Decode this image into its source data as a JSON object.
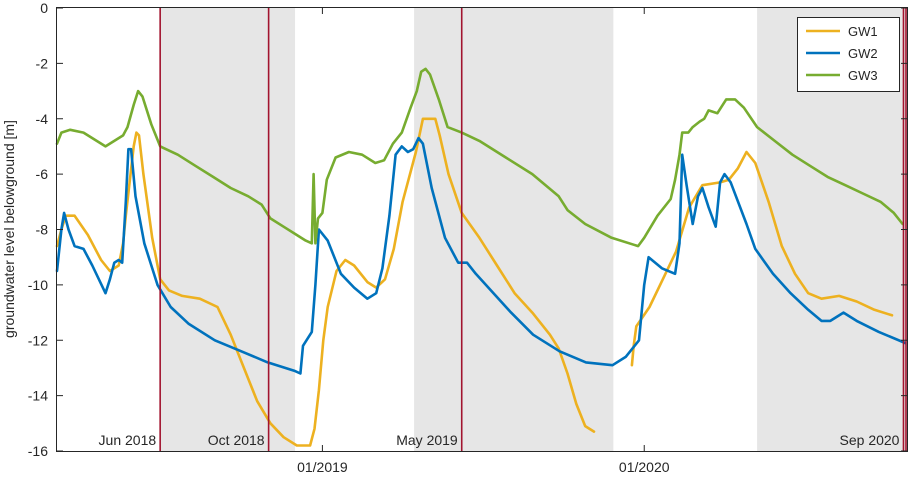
{
  "chart_data": {
    "type": "line",
    "ylabel": "groundwater level belowground [m]",
    "xlabel": "",
    "xlim": [
      "2018-03-06",
      "2020-10-25"
    ],
    "ylim": [
      -16,
      0
    ],
    "x_ticks": [
      {
        "date": "2019-01-01",
        "label": "01/2019"
      },
      {
        "date": "2020-01-01",
        "label": "01/2020"
      }
    ],
    "y_ticks": [
      0,
      -2,
      -4,
      -6,
      -8,
      -10,
      -12,
      -14,
      -16
    ],
    "grid": false,
    "legend": {
      "placement": "top-right"
    },
    "shaded_periods": [
      {
        "start": "2018-07-01",
        "end": "2018-12-01"
      },
      {
        "start": "2019-04-15",
        "end": "2019-11-27"
      },
      {
        "start": "2020-05-08",
        "end": "2020-10-25"
      }
    ],
    "event_lines": [
      {
        "date": "2018-07-01",
        "label": "Jun 2018"
      },
      {
        "date": "2018-11-01",
        "label": "Oct 2018"
      },
      {
        "date": "2019-06-08",
        "label": "May 2019"
      },
      {
        "date": "2020-10-21",
        "label": "Sep 2020"
      },
      {
        "date": "2020-10-24",
        "label": ""
      }
    ],
    "event_color": "#a2142f",
    "series": [
      {
        "name": "GW1",
        "color": "#edb120",
        "segments": [
          [
            [
              "2018-03-06",
              -8.6
            ],
            [
              "2018-03-11",
              -8.0
            ],
            [
              "2018-03-16",
              -7.5
            ],
            [
              "2018-03-26",
              -7.5
            ],
            [
              "2018-04-10",
              -8.2
            ],
            [
              "2018-04-25",
              -9.1
            ],
            [
              "2018-05-05",
              -9.5
            ],
            [
              "2018-05-15",
              -9.3
            ],
            [
              "2018-05-20",
              -8.5
            ],
            [
              "2018-05-23",
              -7.5
            ],
            [
              "2018-06-01",
              -5.0
            ],
            [
              "2018-06-04",
              -4.5
            ],
            [
              "2018-06-07",
              -4.6
            ],
            [
              "2018-06-12",
              -6.0
            ],
            [
              "2018-06-22",
              -8.3
            ],
            [
              "2018-07-01",
              -9.8
            ],
            [
              "2018-07-11",
              -10.2
            ],
            [
              "2018-07-26",
              -10.4
            ],
            [
              "2018-08-15",
              -10.5
            ],
            [
              "2018-09-04",
              -10.8
            ],
            [
              "2018-09-19",
              -11.8
            ],
            [
              "2018-10-04",
              -13.0
            ],
            [
              "2018-10-19",
              -14.2
            ],
            [
              "2018-11-03",
              -15.0
            ],
            [
              "2018-11-18",
              -15.5
            ],
            [
              "2018-12-03",
              -15.8
            ],
            [
              "2018-12-18",
              -15.8
            ],
            [
              "2018-12-23",
              -15.2
            ],
            [
              "2018-12-28",
              -13.8
            ],
            [
              "2019-01-02",
              -12.0
            ],
            [
              "2019-01-07",
              -10.8
            ],
            [
              "2019-01-17",
              -9.5
            ],
            [
              "2019-01-27",
              -9.1
            ],
            [
              "2019-02-06",
              -9.3
            ],
            [
              "2019-02-21",
              -9.9
            ],
            [
              "2019-03-03",
              -10.1
            ],
            [
              "2019-03-13",
              -9.8
            ],
            [
              "2019-03-23",
              -8.7
            ],
            [
              "2019-04-02",
              -7.0
            ],
            [
              "2019-04-17",
              -5.2
            ],
            [
              "2019-04-25",
              -4.0
            ],
            [
              "2019-05-09",
              -4.0
            ],
            [
              "2019-05-14",
              -4.6
            ],
            [
              "2019-05-24",
              -6.0
            ],
            [
              "2019-06-08",
              -7.4
            ],
            [
              "2019-06-28",
              -8.3
            ],
            [
              "2019-07-18",
              -9.3
            ],
            [
              "2019-08-07",
              -10.3
            ],
            [
              "2019-08-27",
              -11.0
            ],
            [
              "2019-09-16",
              -11.8
            ],
            [
              "2019-09-26",
              -12.3
            ],
            [
              "2019-10-06",
              -13.2
            ],
            [
              "2019-10-16",
              -14.3
            ],
            [
              "2019-10-26",
              -15.1
            ],
            [
              "2019-11-05",
              -15.3
            ]
          ],
          [
            [
              "2019-12-18",
              -12.9
            ],
            [
              "2019-12-20",
              -12.2
            ],
            [
              "2019-12-23",
              -11.5
            ],
            [
              "2020-01-07",
              -10.8
            ],
            [
              "2020-01-22",
              -9.8
            ],
            [
              "2020-02-06",
              -8.8
            ],
            [
              "2020-02-21",
              -7.2
            ],
            [
              "2020-03-07",
              -6.4
            ],
            [
              "2020-03-27",
              -6.3
            ],
            [
              "2020-04-06",
              -6.2
            ],
            [
              "2020-04-16",
              -5.8
            ],
            [
              "2020-04-26",
              -5.2
            ],
            [
              "2020-05-06",
              -5.6
            ],
            [
              "2020-05-21",
              -7.0
            ],
            [
              "2020-06-05",
              -8.6
            ],
            [
              "2020-06-20",
              -9.6
            ],
            [
              "2020-07-05",
              -10.3
            ],
            [
              "2020-07-20",
              -10.5
            ],
            [
              "2020-08-09",
              -10.4
            ],
            [
              "2020-08-29",
              -10.6
            ],
            [
              "2020-09-18",
              -10.9
            ],
            [
              "2020-10-08",
              -11.1
            ]
          ]
        ]
      },
      {
        "name": "GW2",
        "color": "#0072bd",
        "segments": [
          [
            [
              "2018-03-06",
              -9.5
            ],
            [
              "2018-03-11",
              -8.0
            ],
            [
              "2018-03-14",
              -7.4
            ],
            [
              "2018-03-19",
              -8.0
            ],
            [
              "2018-03-26",
              -8.6
            ],
            [
              "2018-04-05",
              -8.7
            ],
            [
              "2018-04-15",
              -9.3
            ],
            [
              "2018-04-30",
              -10.3
            ],
            [
              "2018-05-05",
              -9.8
            ],
            [
              "2018-05-10",
              -9.2
            ],
            [
              "2018-05-15",
              -9.1
            ],
            [
              "2018-05-19",
              -9.2
            ],
            [
              "2018-05-23",
              -7.0
            ],
            [
              "2018-05-26",
              -5.1
            ],
            [
              "2018-05-29",
              -5.1
            ],
            [
              "2018-06-03",
              -6.8
            ],
            [
              "2018-06-13",
              -8.5
            ],
            [
              "2018-06-28",
              -10.0
            ],
            [
              "2018-07-13",
              -10.8
            ],
            [
              "2018-08-02",
              -11.4
            ],
            [
              "2018-09-01",
              -12.0
            ],
            [
              "2018-10-01",
              -12.4
            ],
            [
              "2018-10-31",
              -12.8
            ],
            [
              "2018-11-30",
              -13.1
            ],
            [
              "2018-12-07",
              -13.2
            ],
            [
              "2018-12-10",
              -12.2
            ],
            [
              "2018-12-20",
              -11.7
            ],
            [
              "2018-12-24",
              -10.0
            ],
            [
              "2018-12-28",
              -8.0
            ],
            [
              "2019-01-07",
              -8.4
            ],
            [
              "2019-01-22",
              -9.6
            ],
            [
              "2019-02-06",
              -10.1
            ],
            [
              "2019-02-21",
              -10.5
            ],
            [
              "2019-03-03",
              -10.3
            ],
            [
              "2019-03-10",
              -9.4
            ],
            [
              "2019-03-18",
              -7.5
            ],
            [
              "2019-03-25",
              -5.3
            ],
            [
              "2019-04-01",
              -5.0
            ],
            [
              "2019-04-08",
              -5.2
            ],
            [
              "2019-04-14",
              -5.1
            ],
            [
              "2019-04-20",
              -4.7
            ],
            [
              "2019-04-25",
              -4.9
            ],
            [
              "2019-05-05",
              -6.5
            ],
            [
              "2019-05-20",
              -8.3
            ],
            [
              "2019-06-04",
              -9.2
            ],
            [
              "2019-06-14",
              -9.2
            ],
            [
              "2019-06-24",
              -9.6
            ],
            [
              "2019-07-14",
              -10.3
            ],
            [
              "2019-08-03",
              -11.0
            ],
            [
              "2019-08-28",
              -11.8
            ],
            [
              "2019-09-27",
              -12.4
            ],
            [
              "2019-10-27",
              -12.8
            ],
            [
              "2019-11-26",
              -12.9
            ],
            [
              "2019-12-11",
              -12.6
            ],
            [
              "2019-12-26",
              -12.0
            ],
            [
              "2020-01-01",
              -10.0
            ],
            [
              "2020-01-06",
              -9.0
            ],
            [
              "2020-01-21",
              -9.4
            ],
            [
              "2020-02-05",
              -9.6
            ],
            [
              "2020-02-10",
              -8.5
            ],
            [
              "2020-02-13",
              -5.3
            ],
            [
              "2020-02-18",
              -6.4
            ],
            [
              "2020-02-25",
              -7.8
            ],
            [
              "2020-03-02",
              -6.8
            ],
            [
              "2020-03-07",
              -6.5
            ],
            [
              "2020-03-14",
              -7.2
            ],
            [
              "2020-03-22",
              -7.9
            ],
            [
              "2020-03-27",
              -6.3
            ],
            [
              "2020-04-01",
              -6.0
            ],
            [
              "2020-04-08",
              -6.3
            ],
            [
              "2020-04-26",
              -7.8
            ],
            [
              "2020-05-06",
              -8.7
            ],
            [
              "2020-05-26",
              -9.6
            ],
            [
              "2020-06-15",
              -10.3
            ],
            [
              "2020-07-05",
              -10.9
            ],
            [
              "2020-07-20",
              -11.3
            ],
            [
              "2020-07-30",
              -11.3
            ],
            [
              "2020-08-14",
              -11.0
            ],
            [
              "2020-08-29",
              -11.3
            ],
            [
              "2020-09-23",
              -11.7
            ],
            [
              "2020-10-23",
              -12.1
            ]
          ]
        ]
      },
      {
        "name": "GW3",
        "color": "#77ac30",
        "segments": [
          [
            [
              "2018-03-06",
              -4.9
            ],
            [
              "2018-03-11",
              -4.5
            ],
            [
              "2018-03-21",
              -4.4
            ],
            [
              "2018-04-05",
              -4.5
            ],
            [
              "2018-04-20",
              -4.8
            ],
            [
              "2018-04-30",
              -5.0
            ],
            [
              "2018-05-10",
              -4.8
            ],
            [
              "2018-05-20",
              -4.6
            ],
            [
              "2018-05-25",
              -4.3
            ],
            [
              "2018-06-01",
              -3.5
            ],
            [
              "2018-06-06",
              -3.0
            ],
            [
              "2018-06-11",
              -3.2
            ],
            [
              "2018-06-21",
              -4.2
            ],
            [
              "2018-07-01",
              -5.0
            ],
            [
              "2018-07-21",
              -5.3
            ],
            [
              "2018-08-10",
              -5.7
            ],
            [
              "2018-08-30",
              -6.1
            ],
            [
              "2018-09-19",
              -6.5
            ],
            [
              "2018-10-09",
              -6.8
            ],
            [
              "2018-10-24",
              -7.1
            ],
            [
              "2018-11-03",
              -7.6
            ],
            [
              "2018-11-18",
              -7.9
            ],
            [
              "2018-12-03",
              -8.2
            ],
            [
              "2018-12-13",
              -8.4
            ],
            [
              "2018-12-20",
              -8.5
            ],
            [
              "2018-12-22",
              -6.0
            ],
            [
              "2018-12-24",
              -8.5
            ],
            [
              "2018-12-27",
              -7.6
            ],
            [
              "2019-01-01",
              -7.4
            ],
            [
              "2019-01-06",
              -6.2
            ],
            [
              "2019-01-16",
              -5.4
            ],
            [
              "2019-01-31",
              -5.2
            ],
            [
              "2019-02-15",
              -5.3
            ],
            [
              "2019-03-02",
              -5.6
            ],
            [
              "2019-03-12",
              -5.5
            ],
            [
              "2019-03-22",
              -4.9
            ],
            [
              "2019-04-01",
              -4.5
            ],
            [
              "2019-04-11",
              -3.6
            ],
            [
              "2019-04-18",
              -3.0
            ],
            [
              "2019-04-23",
              -2.3
            ],
            [
              "2019-04-28",
              -2.2
            ],
            [
              "2019-05-03",
              -2.4
            ],
            [
              "2019-05-13",
              -3.3
            ],
            [
              "2019-05-23",
              -4.3
            ],
            [
              "2019-06-08",
              -4.5
            ],
            [
              "2019-06-28",
              -4.8
            ],
            [
              "2019-07-28",
              -5.4
            ],
            [
              "2019-08-27",
              -6.0
            ],
            [
              "2019-09-26",
              -6.8
            ],
            [
              "2019-10-06",
              -7.3
            ],
            [
              "2019-10-26",
              -7.8
            ],
            [
              "2019-11-25",
              -8.3
            ],
            [
              "2019-12-25",
              -8.6
            ],
            [
              "2020-01-01",
              -8.3
            ],
            [
              "2020-01-16",
              -7.5
            ],
            [
              "2020-01-31",
              -6.9
            ],
            [
              "2020-02-05",
              -6.2
            ],
            [
              "2020-02-10",
              -5.3
            ],
            [
              "2020-02-13",
              -4.5
            ],
            [
              "2020-02-20",
              -4.5
            ],
            [
              "2020-02-25",
              -4.3
            ],
            [
              "2020-03-04",
              -4.1
            ],
            [
              "2020-03-09",
              -4.0
            ],
            [
              "2020-03-14",
              -3.7
            ],
            [
              "2020-03-24",
              -3.8
            ],
            [
              "2020-04-03",
              -3.3
            ],
            [
              "2020-04-13",
              -3.3
            ],
            [
              "2020-04-23",
              -3.6
            ],
            [
              "2020-05-08",
              -4.3
            ],
            [
              "2020-05-28",
              -4.8
            ],
            [
              "2020-06-17",
              -5.3
            ],
            [
              "2020-07-07",
              -5.7
            ],
            [
              "2020-07-27",
              -6.1
            ],
            [
              "2020-08-16",
              -6.4
            ],
            [
              "2020-09-05",
              -6.7
            ],
            [
              "2020-09-25",
              -7.0
            ],
            [
              "2020-10-10",
              -7.4
            ],
            [
              "2020-10-20",
              -7.8
            ]
          ]
        ]
      }
    ]
  }
}
